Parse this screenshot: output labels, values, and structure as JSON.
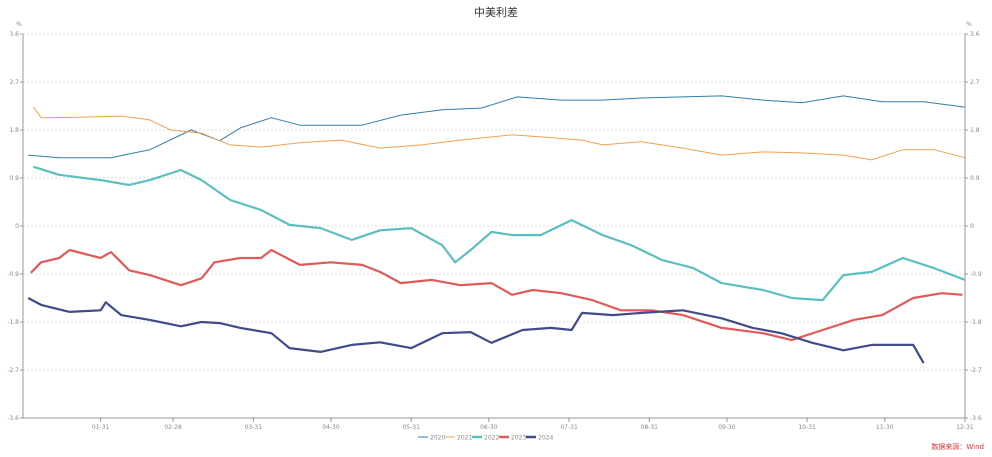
{
  "chart_data": {
    "type": "line",
    "title": "中美利差",
    "y_unit_left": "%",
    "y_unit_right": "%",
    "ylim": [
      -3.6,
      3.6
    ],
    "yticks": [
      "3.6",
      "2.7",
      "1.8",
      "0.9",
      "0",
      "-0.9",
      "-1.8",
      "-2.7",
      "-3.6"
    ],
    "yticks_right": [
      "3.6",
      "2.7",
      "1.8",
      "0.9",
      "0",
      "-0.9",
      "-1.8",
      "-2.7",
      "-3.6"
    ],
    "xlim": [
      "01-01",
      "12-31"
    ],
    "xticks": [
      "01-31",
      "02-28",
      "03-31",
      "04-30",
      "05-31",
      "06-30",
      "07-31",
      "08-31",
      "09-30",
      "10-31",
      "11-30",
      "12-31"
    ],
    "grid": "horizontal dashed",
    "legend_position": "bottom",
    "series": [
      {
        "name": "2020",
        "color": "#2f7fa8",
        "points": [
          [
            "01-03",
            1.33
          ],
          [
            "01-15",
            1.28
          ],
          [
            "02-04",
            1.28
          ],
          [
            "02-19",
            1.43
          ],
          [
            "03-07",
            1.8
          ],
          [
            "03-18",
            1.6
          ],
          [
            "03-26",
            1.84
          ],
          [
            "04-07",
            2.03
          ],
          [
            "04-18",
            1.89
          ],
          [
            "04-30",
            1.89
          ],
          [
            "05-12",
            1.89
          ],
          [
            "05-27",
            2.08
          ],
          [
            "06-12",
            2.18
          ],
          [
            "06-27",
            2.21
          ],
          [
            "07-11",
            2.42
          ],
          [
            "07-28",
            2.36
          ],
          [
            "08-13",
            2.36
          ],
          [
            "08-28",
            2.4
          ],
          [
            "09-13",
            2.42
          ],
          [
            "09-28",
            2.44
          ],
          [
            "10-14",
            2.36
          ],
          [
            "10-29",
            2.31
          ],
          [
            "11-14",
            2.44
          ],
          [
            "11-29",
            2.33
          ],
          [
            "12-15",
            2.33
          ],
          [
            "12-31",
            2.23
          ]
        ]
      },
      {
        "name": "2021",
        "color": "#f0a050",
        "points": [
          [
            "01-05",
            2.23
          ],
          [
            "01-08",
            2.03
          ],
          [
            "01-23",
            2.04
          ],
          [
            "02-08",
            2.06
          ],
          [
            "02-19",
            1.99
          ],
          [
            "02-27",
            1.8
          ],
          [
            "03-11",
            1.74
          ],
          [
            "03-22",
            1.52
          ],
          [
            "04-03",
            1.48
          ],
          [
            "04-18",
            1.56
          ],
          [
            "05-04",
            1.61
          ],
          [
            "05-19",
            1.46
          ],
          [
            "06-04",
            1.52
          ],
          [
            "06-19",
            1.61
          ],
          [
            "07-09",
            1.71
          ],
          [
            "07-20",
            1.67
          ],
          [
            "08-05",
            1.61
          ],
          [
            "08-13",
            1.52
          ],
          [
            "08-28",
            1.58
          ],
          [
            "09-13",
            1.46
          ],
          [
            "09-28",
            1.33
          ],
          [
            "10-14",
            1.39
          ],
          [
            "10-29",
            1.37
          ],
          [
            "11-14",
            1.33
          ],
          [
            "11-25",
            1.24
          ],
          [
            "12-07",
            1.43
          ],
          [
            "12-19",
            1.43
          ],
          [
            "12-31",
            1.28
          ]
        ]
      },
      {
        "name": "2022",
        "color": "#5bbfbf",
        "points": [
          [
            "01-05",
            1.11
          ],
          [
            "01-15",
            0.96
          ],
          [
            "01-31",
            0.86
          ],
          [
            "02-11",
            0.77
          ],
          [
            "02-19",
            0.86
          ],
          [
            "03-03",
            1.05
          ],
          [
            "03-11",
            0.86
          ],
          [
            "03-22",
            0.49
          ],
          [
            "04-03",
            0.3
          ],
          [
            "04-14",
            0.02
          ],
          [
            "04-26",
            -0.04
          ],
          [
            "05-08",
            -0.26
          ],
          [
            "05-19",
            -0.08
          ],
          [
            "05-31",
            -0.04
          ],
          [
            "06-12",
            -0.36
          ],
          [
            "06-17",
            -0.68
          ],
          [
            "06-23",
            -0.45
          ],
          [
            "07-01",
            -0.11
          ],
          [
            "07-09",
            -0.17
          ],
          [
            "07-20",
            -0.17
          ],
          [
            "08-01",
            0.11
          ],
          [
            "08-13",
            -0.17
          ],
          [
            "08-24",
            -0.36
          ],
          [
            "09-05",
            -0.64
          ],
          [
            "09-17",
            -0.79
          ],
          [
            "09-28",
            -1.07
          ],
          [
            "10-14",
            -1.2
          ],
          [
            "10-25",
            -1.35
          ],
          [
            "11-06",
            -1.39
          ],
          [
            "11-14",
            -0.92
          ],
          [
            "11-25",
            -0.86
          ],
          [
            "12-07",
            -0.6
          ],
          [
            "12-19",
            -0.79
          ],
          [
            "12-31",
            -1.01
          ]
        ]
      },
      {
        "name": "2023",
        "color": "#e05a5a",
        "points": [
          [
            "01-04",
            -0.88
          ],
          [
            "01-08",
            -0.68
          ],
          [
            "01-15",
            -0.6
          ],
          [
            "01-19",
            -0.45
          ],
          [
            "01-31",
            -0.6
          ],
          [
            "02-04",
            -0.49
          ],
          [
            "02-11",
            -0.83
          ],
          [
            "02-19",
            -0.92
          ],
          [
            "03-03",
            -1.11
          ],
          [
            "03-11",
            -0.98
          ],
          [
            "03-16",
            -0.68
          ],
          [
            "03-26",
            -0.6
          ],
          [
            "04-03",
            -0.6
          ],
          [
            "04-07",
            -0.45
          ],
          [
            "04-18",
            -0.73
          ],
          [
            "04-30",
            -0.68
          ],
          [
            "05-12",
            -0.73
          ],
          [
            "05-19",
            -0.86
          ],
          [
            "05-27",
            -1.07
          ],
          [
            "06-08",
            -1.01
          ],
          [
            "06-19",
            -1.11
          ],
          [
            "07-01",
            -1.07
          ],
          [
            "07-09",
            -1.29
          ],
          [
            "07-17",
            -1.2
          ],
          [
            "07-28",
            -1.26
          ],
          [
            "08-09",
            -1.39
          ],
          [
            "08-20",
            -1.58
          ],
          [
            "09-01",
            -1.58
          ],
          [
            "09-13",
            -1.67
          ],
          [
            "09-28",
            -1.91
          ],
          [
            "10-14",
            -2.01
          ],
          [
            "10-25",
            -2.14
          ],
          [
            "11-06",
            -1.95
          ],
          [
            "11-18",
            -1.76
          ],
          [
            "11-29",
            -1.67
          ],
          [
            "12-11",
            -1.35
          ],
          [
            "12-22",
            -1.26
          ],
          [
            "12-30",
            -1.29
          ]
        ]
      },
      {
        "name": "2024",
        "color": "#3f4c8a",
        "points": [
          [
            "01-03",
            -1.35
          ],
          [
            "01-08",
            -1.48
          ],
          [
            "01-19",
            -1.61
          ],
          [
            "01-31",
            -1.58
          ],
          [
            "02-02",
            -1.43
          ],
          [
            "02-08",
            -1.67
          ],
          [
            "02-19",
            -1.76
          ],
          [
            "03-03",
            -1.88
          ],
          [
            "03-11",
            -1.8
          ],
          [
            "03-18",
            -1.82
          ],
          [
            "03-26",
            -1.91
          ],
          [
            "04-07",
            -2.01
          ],
          [
            "04-14",
            -2.29
          ],
          [
            "04-26",
            -2.36
          ],
          [
            "05-08",
            -2.23
          ],
          [
            "05-19",
            -2.18
          ],
          [
            "05-31",
            -2.29
          ],
          [
            "06-12",
            -2.01
          ],
          [
            "06-23",
            -1.99
          ],
          [
            "07-01",
            -2.19
          ],
          [
            "07-13",
            -1.95
          ],
          [
            "07-24",
            -1.91
          ],
          [
            "08-01",
            -1.95
          ],
          [
            "08-05",
            -1.63
          ],
          [
            "08-17",
            -1.67
          ],
          [
            "08-28",
            -1.63
          ],
          [
            "09-13",
            -1.58
          ],
          [
            "09-28",
            -1.73
          ],
          [
            "10-10",
            -1.91
          ],
          [
            "10-21",
            -2.01
          ],
          [
            "11-02",
            -2.19
          ],
          [
            "11-14",
            -2.33
          ],
          [
            "11-25",
            -2.23
          ],
          [
            "12-07",
            -2.23
          ],
          [
            "12-11",
            -2.23
          ],
          [
            "12-15",
            -2.57
          ]
        ]
      }
    ]
  },
  "source": "数据来源：Wind"
}
